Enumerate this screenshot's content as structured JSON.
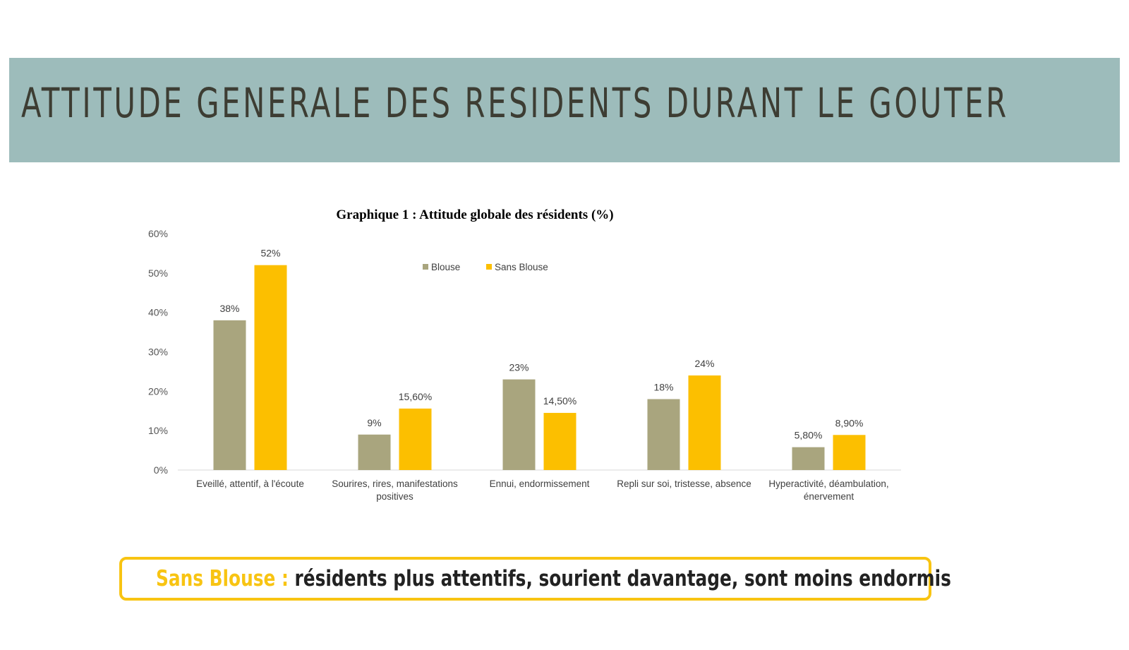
{
  "slide": {
    "title": "ATTITUDE GENERALE DES RESIDENTS DURANT LE GOUTER"
  },
  "callout": {
    "highlight": "Sans Blouse :",
    "text": " résidents plus attentifs, sourient davantage, sont moins endormis"
  },
  "colors": {
    "band": "#9dbcbb",
    "blouse": "#a9a57e",
    "sans_blouse": "#fcbf00",
    "accent": "#f8c412"
  },
  "chart_data": {
    "type": "bar",
    "title": "Graphique 1 : Attitude globale des résidents (%)",
    "xlabel": "",
    "ylabel": "",
    "ylim": [
      0,
      60
    ],
    "yticks": [
      "0%",
      "10%",
      "20%",
      "30%",
      "40%",
      "50%",
      "60%"
    ],
    "grid": false,
    "legend": "top-center",
    "categories": [
      [
        "Eveillé, attentif, à l'écoute"
      ],
      [
        "Sourires, rires, manifestations",
        "positives"
      ],
      [
        "Ennui, endormissement"
      ],
      [
        "Repli sur soi, tristesse, absence"
      ],
      [
        "Hyperactivité, déambulation,",
        "énervement"
      ]
    ],
    "series": [
      {
        "name": "Blouse",
        "color": "#a9a57e",
        "values": [
          38,
          9,
          23,
          18,
          5.8
        ],
        "labels": [
          "38%",
          "9%",
          "23%",
          "18%",
          "5,80%"
        ]
      },
      {
        "name": "Sans Blouse",
        "color": "#fcbf00",
        "values": [
          52,
          15.6,
          14.5,
          24,
          8.9
        ],
        "labels": [
          "52%",
          "15,60%",
          "14,50%",
          "24%",
          "8,90%"
        ]
      }
    ]
  }
}
